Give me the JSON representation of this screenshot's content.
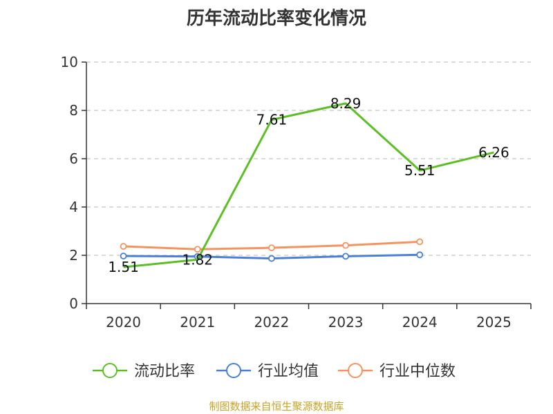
{
  "chart_data": {
    "type": "line",
    "title": "历年流动比率变化情况",
    "categories": [
      "2020",
      "2021",
      "2022",
      "2023",
      "2024",
      "2025"
    ],
    "ylim": [
      0,
      10
    ],
    "yticks": [
      "0",
      "2",
      "4",
      "6",
      "8",
      "10"
    ],
    "grid": "horizontal dashed",
    "legend_position": "bottom",
    "series": [
      {
        "name": "流动比率",
        "color": "#5cbf24",
        "values": [
          1.51,
          1.82,
          7.61,
          8.29,
          5.51,
          6.26
        ],
        "labels": [
          "1.51",
          "1.82",
          "7.61",
          "8.29",
          "5.51",
          "6.26"
        ]
      },
      {
        "name": "行业均值",
        "color": "#4a7fd6",
        "values": [
          1.97,
          1.95,
          1.87,
          1.96,
          2.02,
          null
        ]
      },
      {
        "name": "行业中位数",
        "color": "#f5935f",
        "values": [
          2.37,
          2.25,
          2.31,
          2.41,
          2.56,
          null
        ]
      }
    ]
  },
  "source": "制图数据来自恒生聚源数据库"
}
